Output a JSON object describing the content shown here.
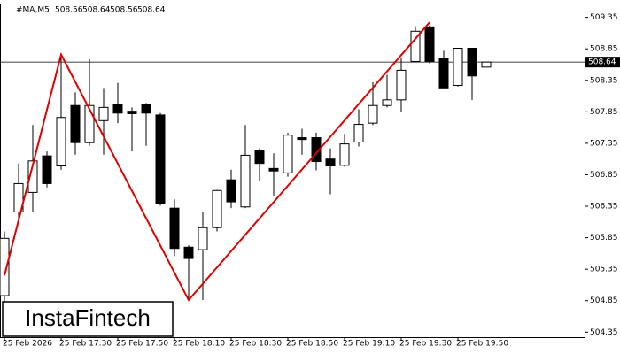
{
  "chart_data": {
    "type": "candlestick",
    "symbol": "#MA,M5",
    "header_values": [
      508.56,
      508.64,
      508.56,
      508.64
    ],
    "price_line": 508.64,
    "watermark": "InstaFintech",
    "up_color": "#ffffff",
    "down_color": "#000000",
    "pattern_color": "#e00000",
    "categories": [
      "25 Feb 2026",
      null,
      null,
      null,
      "25 Feb 17:30",
      null,
      null,
      null,
      "25 Feb 17:50",
      null,
      null,
      null,
      "25 Feb 18:10",
      null,
      null,
      null,
      "25 Feb 18:30",
      null,
      null,
      null,
      "25 Feb 18:50",
      null,
      null,
      null,
      "25 Feb 19:10",
      null,
      null,
      null,
      "25 Feb 19:30",
      null,
      null,
      null,
      "25 Feb 19:50",
      null,
      null
    ],
    "open": [
      504.93,
      506.26,
      506.57,
      507.15,
      506.99,
      507.95,
      507.36,
      507.71,
      507.97,
      507.86,
      507.97,
      507.8,
      506.32,
      505.7,
      505.66,
      506.01,
      506.77,
      506.34,
      507.24,
      506.95,
      506.88,
      507.44,
      507.44,
      507.1,
      507.0,
      507.37,
      507.67,
      507.95,
      508.04,
      508.65,
      509.2,
      508.7,
      508.27,
      508.86,
      508.56
    ],
    "high": [
      505.95,
      507.03,
      507.64,
      507.22,
      508.76,
      508.16,
      508.69,
      508.23,
      508.31,
      507.92,
      507.99,
      507.83,
      506.46,
      505.73,
      506.26,
      506.61,
      506.93,
      507.64,
      507.27,
      507.19,
      507.52,
      507.58,
      507.52,
      507.27,
      507.5,
      507.89,
      508.32,
      508.44,
      508.7,
      509.21,
      509.22,
      508.82,
      508.86,
      508.86,
      508.64
    ],
    "low": [
      504.29,
      506.12,
      506.26,
      506.65,
      506.93,
      507.17,
      507.31,
      507.17,
      507.67,
      507.22,
      507.31,
      506.36,
      505.56,
      504.86,
      504.86,
      505.95,
      506.32,
      506.32,
      506.75,
      506.51,
      506.82,
      507.17,
      506.92,
      506.54,
      506.98,
      507.3,
      507.64,
      507.92,
      507.85,
      508.65,
      508.62,
      508.23,
      508.25,
      508.04,
      508.56
    ],
    "close": [
      505.84,
      506.71,
      507.07,
      506.71,
      507.76,
      507.36,
      507.95,
      507.92,
      507.83,
      507.82,
      507.83,
      506.39,
      505.68,
      505.52,
      506.01,
      506.6,
      506.42,
      507.16,
      507.03,
      506.91,
      507.48,
      507.41,
      507.06,
      506.99,
      507.34,
      507.65,
      507.95,
      508.04,
      508.51,
      509.13,
      508.65,
      508.23,
      508.86,
      508.42,
      508.64
    ],
    "pattern": {
      "indices": [
        0,
        4,
        13,
        30
      ],
      "values": [
        505.25,
        508.76,
        504.86,
        509.27
      ]
    },
    "ylim": [
      504.27,
      509.57
    ],
    "yticks": [
      504.35,
      504.85,
      505.35,
      505.85,
      506.35,
      506.85,
      507.35,
      507.85,
      508.35,
      508.85,
      509.35
    ]
  }
}
